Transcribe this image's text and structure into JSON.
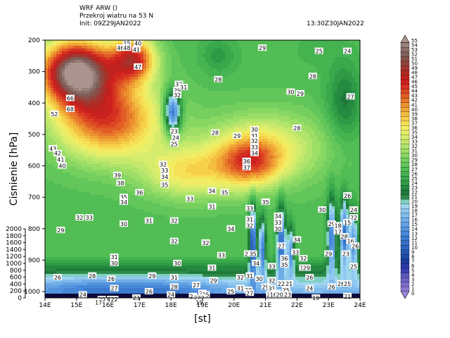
{
  "header": {
    "model": "WRF ARW ()",
    "product": "Przekroj wiatru na 53 N",
    "init": "Init: 09Z29JAN2022",
    "valid": "13:30Z30JAN2022"
  },
  "chart_data": {
    "type": "heatmap",
    "xlabel": "[st]",
    "ylabel": "Cisnienie [hPa]",
    "x_ticks": [
      "14E",
      "15E",
      "16E",
      "17E",
      "18E",
      "19E",
      "20E",
      "21E",
      "22E",
      "23E",
      "24E"
    ],
    "x_range": [
      14,
      24
    ],
    "y_ticks_pressure": [
      200,
      300,
      400,
      500,
      600,
      700,
      800,
      900,
      1000
    ],
    "y_range_pressure": [
      200,
      1020
    ],
    "y_ticks_height": [
      0,
      200,
      400,
      600,
      800,
      1000,
      1200,
      1400,
      1600,
      1800,
      2000
    ],
    "colorbar_values": [
      0,
      1,
      2,
      3,
      4,
      5,
      6,
      7,
      8,
      9,
      10,
      11,
      12,
      13,
      14,
      15,
      16,
      17,
      18,
      19,
      20,
      21,
      22,
      23,
      24,
      25,
      26,
      27,
      28,
      29,
      30,
      31,
      32,
      33,
      34,
      35,
      36,
      37,
      38,
      39,
      40,
      41,
      42,
      43,
      44,
      45,
      46,
      47,
      48,
      49,
      50,
      51,
      52,
      53,
      54,
      55
    ],
    "colorbar_colors": [
      "#9a84d4",
      "#8c77cf",
      "#7e6bc9",
      "#6b62c4",
      "#5a57bf",
      "#3b3fb0",
      "#2b38a8",
      "#1e3aa0",
      "#1f4aa8",
      "#2456b0",
      "#2c64bd",
      "#336fc6",
      "#3b7bcf",
      "#4787d8",
      "#5494de",
      "#62a1e3",
      "#70aee8",
      "#7fbbec",
      "#8fc8ef",
      "#a0d5f1",
      "#7fd0c0",
      "#2e8b4a",
      "#1f7a3a",
      "#248a3f",
      "#2f9a46",
      "#39a84b",
      "#44b350",
      "#52bd55",
      "#62c65a",
      "#74cf5f",
      "#88d763",
      "#9cde66",
      "#b0e46a",
      "#c4e86c",
      "#d6ec6c",
      "#e6ee6a",
      "#f2ec62",
      "#f6e056",
      "#f6d04a",
      "#f3bd3f",
      "#f0a636",
      "#ec8f2f",
      "#e7762a",
      "#e25d26",
      "#dc4523",
      "#d53021",
      "#cc211f",
      "#c0211e",
      "#b22a24",
      "#a2352e",
      "#93433c",
      "#87524c",
      "#7e5f59",
      "#8a6e69",
      "#9a807b",
      "#ab948f"
    ],
    "colorbar_labels": [
      "0",
      "1",
      "2",
      "3",
      "4",
      "5",
      "6",
      "7",
      "8",
      "9",
      "10",
      "11",
      "12",
      "13",
      "14",
      "15",
      "16",
      "17",
      "18",
      "19",
      "20",
      "21",
      "22",
      "23",
      "24",
      "25",
      "26",
      "27",
      "28",
      "29",
      "30",
      "31",
      "32",
      "33",
      "34",
      "35",
      "36",
      "37",
      "38",
      "39",
      "40",
      "41",
      "42",
      "43",
      "44",
      "45",
      "46",
      "47",
      "48",
      "49",
      "50",
      "51",
      "52",
      "53",
      "54",
      "55"
    ],
    "field_centers": [
      {
        "lon": 15.0,
        "p": 300,
        "v": 55,
        "sx": 0.8,
        "sy": 70
      },
      {
        "lon": 16.0,
        "p": 450,
        "v": 44,
        "sx": 1.2,
        "sy": 90
      },
      {
        "lon": 16.8,
        "p": 260,
        "v": 45,
        "sx": 0.5,
        "sy": 50
      },
      {
        "lon": 18.05,
        "p": 430,
        "v": 8,
        "sx": 0.18,
        "sy": 45
      },
      {
        "lon": 20.5,
        "p": 590,
        "v": 39,
        "sx": 0.7,
        "sy": 55
      },
      {
        "lon": 21.0,
        "p": 540,
        "v": 35,
        "sx": 1.4,
        "sy": 80
      },
      {
        "lon": 18.5,
        "p": 620,
        "v": 36,
        "sx": 1.0,
        "sy": 60
      },
      {
        "lon": 23.5,
        "p": 400,
        "v": 22,
        "sx": 0.4,
        "sy": 90
      },
      {
        "lon": 19.5,
        "p": 250,
        "v": 24,
        "sx": 0.4,
        "sy": 40
      },
      {
        "lon": 22.6,
        "p": 230,
        "v": 26,
        "sx": 0.5,
        "sy": 40
      },
      {
        "lon": 20.6,
        "p": 860,
        "v": 8,
        "sx": 0.08,
        "sy": 90
      },
      {
        "lon": 20.9,
        "p": 870,
        "v": 12,
        "sx": 0.08,
        "sy": 70
      },
      {
        "lon": 21.5,
        "p": 850,
        "v": 10,
        "sx": 0.1,
        "sy": 80
      },
      {
        "lon": 21.8,
        "p": 880,
        "v": 14,
        "sx": 0.08,
        "sy": 60
      },
      {
        "lon": 23.1,
        "p": 830,
        "v": 12,
        "sx": 0.1,
        "sy": 90
      },
      {
        "lon": 23.5,
        "p": 820,
        "v": 11,
        "sx": 0.1,
        "sy": 80
      },
      {
        "lon": 23.8,
        "p": 850,
        "v": 14,
        "sx": 0.1,
        "sy": 70
      },
      {
        "lon": 17.5,
        "p": 1000,
        "v": 12,
        "sx": 1.5,
        "sy": 25
      },
      {
        "lon": 15.0,
        "p": 1000,
        "v": 14,
        "sx": 1.2,
        "sy": 25
      }
    ],
    "contour_labels": [
      {
        "lon": 16.6,
        "p": 210,
        "t": "15"
      },
      {
        "lon": 16.95,
        "p": 210,
        "t": "40"
      },
      {
        "lon": 16.4,
        "p": 225,
        "t": "46"
      },
      {
        "lon": 16.6,
        "p": 225,
        "t": "48"
      },
      {
        "lon": 16.9,
        "p": 230,
        "t": "41"
      },
      {
        "lon": 16.95,
        "p": 285,
        "t": "47"
      },
      {
        "lon": 14.8,
        "p": 385,
        "t": "66"
      },
      {
        "lon": 14.8,
        "p": 420,
        "t": "68"
      },
      {
        "lon": 14.3,
        "p": 435,
        "t": "52"
      },
      {
        "lon": 14.25,
        "p": 545,
        "t": "43"
      },
      {
        "lon": 14.4,
        "p": 560,
        "t": "42"
      },
      {
        "lon": 14.5,
        "p": 580,
        "t": "41"
      },
      {
        "lon": 14.55,
        "p": 600,
        "t": "40"
      },
      {
        "lon": 16.3,
        "p": 630,
        "t": "39"
      },
      {
        "lon": 16.4,
        "p": 655,
        "t": "38"
      },
      {
        "lon": 17.0,
        "p": 685,
        "t": "36"
      },
      {
        "lon": 16.5,
        "p": 700,
        "t": "35"
      },
      {
        "lon": 16.5,
        "p": 715,
        "t": "34"
      },
      {
        "lon": 18.25,
        "p": 340,
        "t": "33"
      },
      {
        "lon": 18.2,
        "p": 360,
        "t": "29"
      },
      {
        "lon": 18.2,
        "p": 375,
        "t": "32"
      },
      {
        "lon": 18.4,
        "p": 350,
        "t": "31"
      },
      {
        "lon": 18.1,
        "p": 490,
        "t": "23"
      },
      {
        "lon": 18.15,
        "p": 510,
        "t": "24"
      },
      {
        "lon": 18.1,
        "p": 530,
        "t": "25"
      },
      {
        "lon": 17.75,
        "p": 595,
        "t": "32"
      },
      {
        "lon": 17.8,
        "p": 615,
        "t": "33"
      },
      {
        "lon": 17.8,
        "p": 635,
        "t": "34"
      },
      {
        "lon": 17.8,
        "p": 660,
        "t": "35"
      },
      {
        "lon": 19.5,
        "p": 325,
        "t": "28"
      },
      {
        "lon": 20.9,
        "p": 225,
        "t": "29"
      },
      {
        "lon": 22.7,
        "p": 235,
        "t": "25"
      },
      {
        "lon": 23.6,
        "p": 235,
        "t": "24"
      },
      {
        "lon": 22.5,
        "p": 315,
        "t": "28"
      },
      {
        "lon": 21.8,
        "p": 365,
        "t": "30"
      },
      {
        "lon": 22.1,
        "p": 370,
        "t": "29"
      },
      {
        "lon": 23.7,
        "p": 380,
        "t": "27"
      },
      {
        "lon": 22.0,
        "p": 480,
        "t": "28"
      },
      {
        "lon": 19.4,
        "p": 495,
        "t": "28"
      },
      {
        "lon": 20.1,
        "p": 505,
        "t": "29"
      },
      {
        "lon": 20.65,
        "p": 485,
        "t": "30"
      },
      {
        "lon": 20.65,
        "p": 505,
        "t": "31"
      },
      {
        "lon": 20.65,
        "p": 520,
        "t": "32"
      },
      {
        "lon": 20.65,
        "p": 540,
        "t": "33"
      },
      {
        "lon": 20.65,
        "p": 560,
        "t": "34"
      },
      {
        "lon": 20.4,
        "p": 585,
        "t": "36"
      },
      {
        "lon": 20.4,
        "p": 605,
        "t": "37"
      },
      {
        "lon": 19.3,
        "p": 680,
        "t": "34"
      },
      {
        "lon": 19.7,
        "p": 685,
        "t": "35"
      },
      {
        "lon": 18.6,
        "p": 705,
        "t": "33"
      },
      {
        "lon": 19.3,
        "p": 730,
        "t": "31"
      },
      {
        "lon": 20.5,
        "p": 735,
        "t": "33"
      },
      {
        "lon": 21.0,
        "p": 715,
        "t": "35"
      },
      {
        "lon": 22.8,
        "p": 740,
        "t": "30"
      },
      {
        "lon": 23.6,
        "p": 695,
        "t": "26"
      },
      {
        "lon": 23.8,
        "p": 740,
        "t": "24"
      },
      {
        "lon": 23.8,
        "p": 765,
        "t": "22"
      },
      {
        "lon": 15.1,
        "p": 765,
        "t": "32"
      },
      {
        "lon": 15.4,
        "p": 765,
        "t": "33"
      },
      {
        "lon": 16.5,
        "p": 785,
        "t": "30"
      },
      {
        "lon": 17.3,
        "p": 775,
        "t": "31"
      },
      {
        "lon": 18.1,
        "p": 775,
        "t": "32"
      },
      {
        "lon": 14.5,
        "p": 805,
        "t": "29"
      },
      {
        "lon": 20.5,
        "p": 770,
        "t": "31"
      },
      {
        "lon": 20.5,
        "p": 790,
        "t": "32"
      },
      {
        "lon": 21.4,
        "p": 760,
        "t": "34"
      },
      {
        "lon": 21.4,
        "p": 780,
        "t": "33"
      },
      {
        "lon": 21.4,
        "p": 800,
        "t": "30"
      },
      {
        "lon": 23.1,
        "p": 785,
        "t": "29"
      },
      {
        "lon": 23.3,
        "p": 790,
        "t": "18"
      },
      {
        "lon": 23.6,
        "p": 780,
        "t": "15"
      },
      {
        "lon": 19.9,
        "p": 800,
        "t": "34"
      },
      {
        "lon": 18.1,
        "p": 840,
        "t": "32"
      },
      {
        "lon": 19.1,
        "p": 845,
        "t": "32"
      },
      {
        "lon": 22.0,
        "p": 835,
        "t": "34"
      },
      {
        "lon": 23.3,
        "p": 810,
        "t": "17"
      },
      {
        "lon": 23.5,
        "p": 825,
        "t": "28"
      },
      {
        "lon": 23.7,
        "p": 840,
        "t": "16"
      },
      {
        "lon": 23.85,
        "p": 855,
        "t": "26"
      },
      {
        "lon": 21.5,
        "p": 855,
        "t": "27"
      },
      {
        "lon": 21.95,
        "p": 875,
        "t": "33"
      },
      {
        "lon": 20.45,
        "p": 880,
        "t": "23"
      },
      {
        "lon": 20.6,
        "p": 880,
        "t": "35"
      },
      {
        "lon": 16.2,
        "p": 890,
        "t": "31"
      },
      {
        "lon": 16.2,
        "p": 910,
        "t": "30"
      },
      {
        "lon": 18.2,
        "p": 910,
        "t": "30"
      },
      {
        "lon": 19.6,
        "p": 885,
        "t": "33"
      },
      {
        "lon": 20.7,
        "p": 910,
        "t": "34"
      },
      {
        "lon": 21.6,
        "p": 895,
        "t": "36"
      },
      {
        "lon": 21.6,
        "p": 915,
        "t": "35"
      },
      {
        "lon": 22.2,
        "p": 895,
        "t": "32"
      },
      {
        "lon": 23.0,
        "p": 880,
        "t": "29"
      },
      {
        "lon": 23.55,
        "p": 880,
        "t": "23"
      },
      {
        "lon": 15.5,
        "p": 950,
        "t": "28"
      },
      {
        "lon": 19.3,
        "p": 925,
        "t": "31"
      },
      {
        "lon": 21.2,
        "p": 920,
        "t": "33"
      },
      {
        "lon": 22.2,
        "p": 925,
        "t": "31"
      },
      {
        "lon": 22.3,
        "p": 925,
        "t": "29"
      },
      {
        "lon": 23.8,
        "p": 920,
        "t": "25"
      },
      {
        "lon": 16.1,
        "p": 960,
        "t": "26"
      },
      {
        "lon": 14.4,
        "p": 955,
        "t": "26"
      },
      {
        "lon": 16.2,
        "p": 990,
        "t": "27"
      },
      {
        "lon": 17.4,
        "p": 950,
        "t": "29"
      },
      {
        "lon": 18.1,
        "p": 955,
        "t": "31"
      },
      {
        "lon": 19.35,
        "p": 965,
        "t": "29"
      },
      {
        "lon": 20.2,
        "p": 955,
        "t": "32"
      },
      {
        "lon": 20.5,
        "p": 950,
        "t": "31"
      },
      {
        "lon": 20.8,
        "p": 960,
        "t": "30"
      },
      {
        "lon": 21.2,
        "p": 965,
        "t": "32"
      },
      {
        "lon": 21.5,
        "p": 975,
        "t": "22"
      },
      {
        "lon": 21.75,
        "p": 975,
        "t": "21"
      },
      {
        "lon": 22.4,
        "p": 955,
        "t": "26"
      },
      {
        "lon": 23.1,
        "p": 985,
        "t": "26"
      },
      {
        "lon": 23.4,
        "p": 975,
        "t": "26"
      },
      {
        "lon": 23.6,
        "p": 975,
        "t": "25"
      },
      {
        "lon": 18.1,
        "p": 985,
        "t": "28"
      },
      {
        "lon": 17.3,
        "p": 1000,
        "t": "26"
      },
      {
        "lon": 18.8,
        "p": 980,
        "t": "27"
      },
      {
        "lon": 20.2,
        "p": 990,
        "t": "31"
      },
      {
        "lon": 20.45,
        "p": 995,
        "t": "30"
      },
      {
        "lon": 21.0,
        "p": 985,
        "t": "29"
      },
      {
        "lon": 21.2,
        "p": 990,
        "t": "31"
      },
      {
        "lon": 21.35,
        "p": 1005,
        "t": "25"
      },
      {
        "lon": 21.65,
        "p": 995,
        "t": "25"
      },
      {
        "lon": 21.45,
        "p": 1010,
        "t": "22"
      },
      {
        "lon": 21.7,
        "p": 1010,
        "t": "23"
      },
      {
        "lon": 20.5,
        "p": 1005,
        "t": "27"
      },
      {
        "lon": 21.15,
        "p": 1010,
        "t": "25"
      },
      {
        "lon": 15.2,
        "p": 1010,
        "t": "24"
      },
      {
        "lon": 16.9,
        "p": 1020,
        "t": "23"
      },
      {
        "lon": 18.0,
        "p": 1010,
        "t": "24"
      },
      {
        "lon": 18.7,
        "p": 1015,
        "t": "22"
      },
      {
        "lon": 19.0,
        "p": 1005,
        "t": "25"
      },
      {
        "lon": 19.1,
        "p": 1010,
        "t": "25"
      },
      {
        "lon": 19.9,
        "p": 1000,
        "t": "25"
      },
      {
        "lon": 21.25,
        "p": 1010,
        "t": "16"
      },
      {
        "lon": 21.45,
        "p": 1010,
        "t": "20"
      },
      {
        "lon": 22.4,
        "p": 990,
        "t": "24"
      },
      {
        "lon": 22.6,
        "p": 1020,
        "t": "19"
      },
      {
        "lon": 23.6,
        "p": 1015,
        "t": "21"
      },
      {
        "lon": 18.85,
        "p": 1020,
        "t": "20"
      },
      {
        "lon": 18.95,
        "p": 1020,
        "t": "22"
      },
      {
        "lon": 15.8,
        "p": 1025,
        "t": "20"
      },
      {
        "lon": 16.1,
        "p": 1025,
        "t": "18"
      },
      {
        "lon": 16.2,
        "p": 1025,
        "t": "22"
      },
      {
        "lon": 15.7,
        "p": 1035,
        "t": "17"
      },
      {
        "lon": 18.9,
        "p": 1035,
        "t": "19"
      }
    ]
  }
}
